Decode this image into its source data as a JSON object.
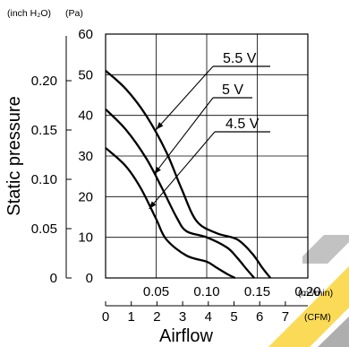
{
  "colors": {
    "ink": "#000000",
    "watermark_yellow": "#f9d33a",
    "watermark_gray": "#9a9a9a"
  },
  "chart_data": {
    "type": "line",
    "title": "",
    "xlabel": "Airflow",
    "ylabel": "Static pressure",
    "x_unit_primary": "(m³/min)",
    "x_unit_secondary": "(CFM)",
    "y_unit_primary": "(Pa)",
    "y_unit_secondary": "(inch H₂O)",
    "xlim": [
      0,
      0.2
    ],
    "ylim": [
      0,
      60
    ],
    "x_ticks_primary": [
      "0.05",
      "0.10",
      "0.15",
      "0.20"
    ],
    "x_ticks_primary_values": [
      0.05,
      0.1,
      0.15,
      0.2
    ],
    "x_ticks_secondary": [
      "0",
      "1",
      "2",
      "3",
      "4",
      "5",
      "6",
      "7"
    ],
    "x_ticks_secondary_values": [
      0,
      1,
      2,
      3,
      4,
      5,
      6,
      7
    ],
    "y_ticks_primary": [
      "0",
      "10",
      "20",
      "30",
      "40",
      "50",
      "60"
    ],
    "y_ticks_primary_values": [
      0,
      10,
      20,
      30,
      40,
      50,
      60
    ],
    "y_ticks_secondary": [
      "0",
      "0.05",
      "0.10",
      "0.15",
      "0.20"
    ],
    "y_ticks_secondary_values": [
      0,
      0.05,
      0.1,
      0.15,
      0.2
    ],
    "grid": true,
    "series": [
      {
        "name": "5.5 V",
        "x": [
          0,
          0.02,
          0.04,
          0.06,
          0.075,
          0.09,
          0.11,
          0.13,
          0.145,
          0.155,
          0.163
        ],
        "y": [
          51,
          46.5,
          40,
          31,
          22,
          14,
          11,
          9.5,
          6,
          2.5,
          0
        ]
      },
      {
        "name": "5 V",
        "x": [
          0,
          0.02,
          0.04,
          0.055,
          0.07,
          0.08,
          0.1,
          0.12,
          0.13,
          0.14,
          0.147
        ],
        "y": [
          41.5,
          36.5,
          29.5,
          22.5,
          15,
          11.5,
          10,
          7.5,
          5,
          2,
          0
        ]
      },
      {
        "name": "4.5 V",
        "x": [
          0,
          0.02,
          0.035,
          0.05,
          0.06,
          0.08,
          0.1,
          0.11,
          0.12,
          0.128
        ],
        "y": [
          32,
          27.5,
          22,
          14.5,
          9.5,
          5.5,
          4,
          2.5,
          1,
          0
        ]
      }
    ],
    "annotations": [
      {
        "text": "5.5 V",
        "series": "5.5 V"
      },
      {
        "text": "5 V",
        "series": "5 V"
      },
      {
        "text": "4.5 V",
        "series": "4.5 V"
      }
    ]
  }
}
